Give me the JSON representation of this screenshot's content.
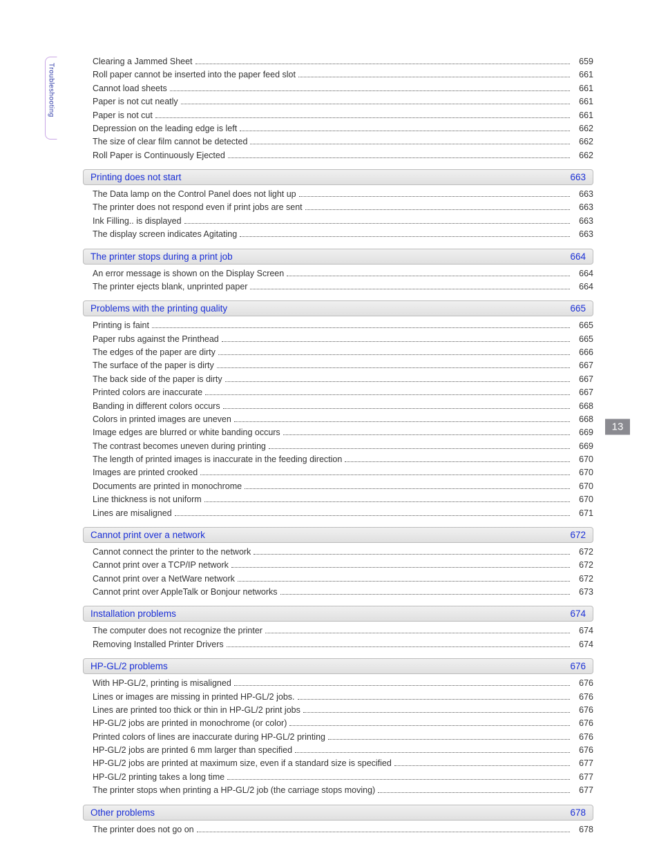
{
  "side_tab": {
    "label": "Troubleshooting"
  },
  "page_number": "13",
  "intro_items": [
    {
      "label": "Clearing a Jammed Sheet",
      "page": "659"
    },
    {
      "label": "Roll paper cannot be inserted into the paper feed slot",
      "page": "661"
    },
    {
      "label": "Cannot load sheets",
      "page": "661"
    },
    {
      "label": "Paper is not cut neatly",
      "page": "661"
    },
    {
      "label": "Paper is not cut",
      "page": "661"
    },
    {
      "label": "Depression on the leading edge is left",
      "page": "662"
    },
    {
      "label": "The size of clear film cannot be detected",
      "page": "662"
    },
    {
      "label": "Roll Paper is Continuously Ejected",
      "page": "662"
    }
  ],
  "sections": [
    {
      "title": "Printing does not start",
      "page": "663",
      "items": [
        {
          "label": "The Data lamp on the Control Panel does not light up",
          "page": "663"
        },
        {
          "label": "The printer does not respond even if print jobs are sent",
          "page": "663"
        },
        {
          "label": "Ink Filling.. is displayed",
          "page": "663"
        },
        {
          "label": "The display screen indicates Agitating",
          "page": "663"
        }
      ]
    },
    {
      "title": "The printer stops during a print job",
      "page": "664",
      "items": [
        {
          "label": "An error message is shown on the Display Screen",
          "page": "664"
        },
        {
          "label": "The printer ejects blank, unprinted paper",
          "page": "664"
        }
      ]
    },
    {
      "title": "Problems with the printing quality",
      "page": "665",
      "items": [
        {
          "label": "Printing is faint",
          "page": "665"
        },
        {
          "label": "Paper rubs against the Printhead",
          "page": "665"
        },
        {
          "label": "The edges of the paper are dirty",
          "page": "666"
        },
        {
          "label": "The surface of the paper is dirty",
          "page": "667"
        },
        {
          "label": "The back side of the paper is dirty",
          "page": "667"
        },
        {
          "label": "Printed colors are inaccurate",
          "page": "667"
        },
        {
          "label": "Banding in different colors occurs",
          "page": "668"
        },
        {
          "label": "Colors in printed images are uneven",
          "page": "668"
        },
        {
          "label": "Image edges are blurred or white banding occurs",
          "page": "669"
        },
        {
          "label": "The contrast becomes uneven during printing",
          "page": "669"
        },
        {
          "label": "The length of printed images is inaccurate in the feeding direction",
          "page": "670"
        },
        {
          "label": "Images are printed crooked",
          "page": "670"
        },
        {
          "label": "Documents are printed in monochrome",
          "page": "670"
        },
        {
          "label": "Line thickness is not uniform",
          "page": "670"
        },
        {
          "label": "Lines are misaligned",
          "page": "671"
        }
      ]
    },
    {
      "title": "Cannot print over a network",
      "page": "672",
      "items": [
        {
          "label": "Cannot connect the printer to the network",
          "page": "672"
        },
        {
          "label": "Cannot print over a TCP/IP network",
          "page": "672"
        },
        {
          "label": "Cannot print over a NetWare network",
          "page": "672"
        },
        {
          "label": "Cannot print over AppleTalk or Bonjour networks",
          "page": "673"
        }
      ]
    },
    {
      "title": "Installation problems",
      "page": "674",
      "items": [
        {
          "label": "The computer does not recognize the printer",
          "page": "674"
        },
        {
          "label": "Removing Installed Printer Drivers",
          "page": "674"
        }
      ]
    },
    {
      "title": "HP-GL/2 problems",
      "page": "676",
      "items": [
        {
          "label": "With HP-GL/2, printing is misaligned",
          "page": "676"
        },
        {
          "label": "Lines or images are missing in printed HP-GL/2 jobs.",
          "page": "676"
        },
        {
          "label": "Lines are printed too thick or thin in HP-GL/2 print jobs",
          "page": "676"
        },
        {
          "label": "HP-GL/2 jobs are printed in monochrome (or color)",
          "page": "676"
        },
        {
          "label": "Printed colors of lines are inaccurate during HP-GL/2 printing",
          "page": "676"
        },
        {
          "label": "HP-GL/2 jobs are printed 6 mm larger than specified",
          "page": "676"
        },
        {
          "label": "HP-GL/2 jobs are printed at maximum size, even if a standard size is specified",
          "page": "677"
        },
        {
          "label": "HP-GL/2 printing takes a long time",
          "page": "677"
        },
        {
          "label": "The printer stops when printing a HP-GL/2 job (the carriage stops moving)",
          "page": "677"
        }
      ]
    },
    {
      "title": "Other problems",
      "page": "678",
      "items": [
        {
          "label": "The printer does not go on",
          "page": "678"
        }
      ]
    }
  ]
}
